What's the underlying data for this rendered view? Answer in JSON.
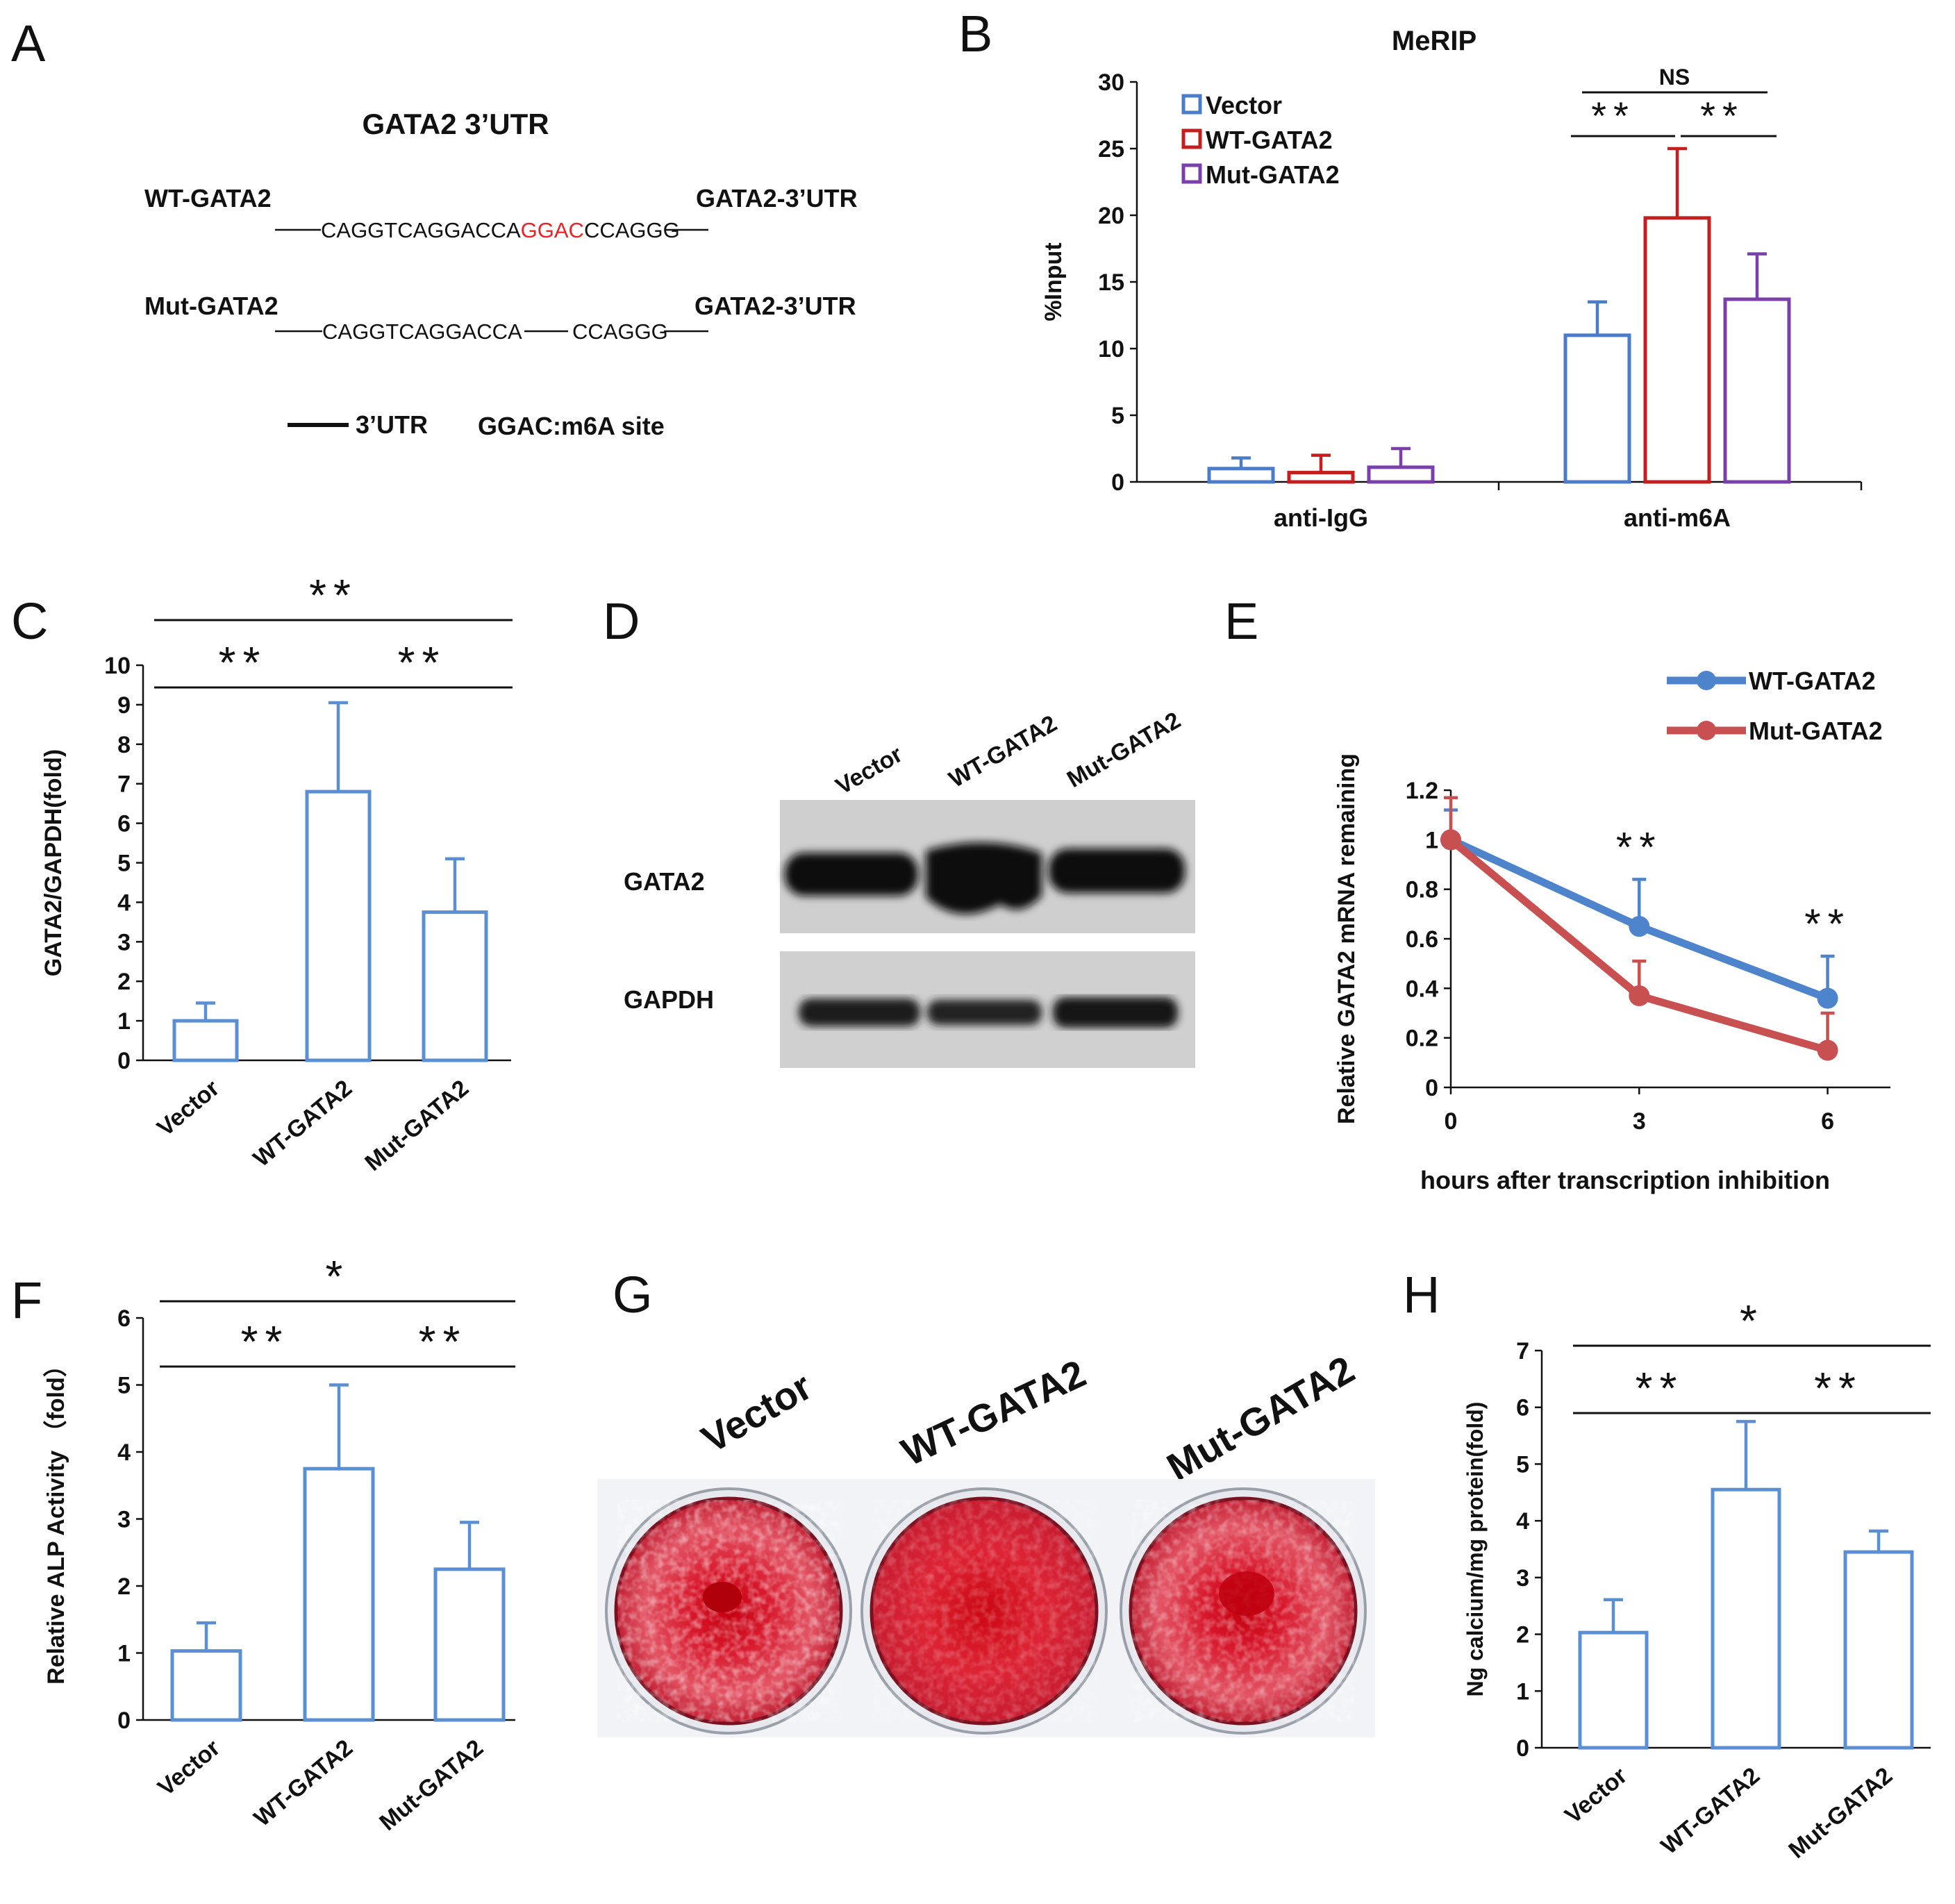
{
  "colors": {
    "vector": "#4a7cc9",
    "wt": "#c41e1e",
    "mut": "#7a3fa8",
    "line_wt": "#4e84cc",
    "line_mut": "#c95050",
    "bar_single": "#5b8fd3",
    "red_text": "#e8232a",
    "stain": "#d61a2c"
  },
  "panels": {
    "A": {
      "letter": "A",
      "title": "GATA2 3’UTR",
      "wt_label": "WT-GATA2",
      "wt_seq_left": "CAGGTCAGGACCA",
      "wt_seq_site": "GGAC",
      "wt_seq_right": "CCAGGG",
      "mut_label": "Mut-GATA2",
      "mut_seq_left": "CAGGTCAGGACCA",
      "mut_seq_right": "CCAGGG",
      "utr_label_1": "GATA2-3’UTR",
      "utr_label_2": "GATA2-3’UTR",
      "legend_line": "3’UTR",
      "legend_site": "GGAC:m6A site"
    },
    "B": {
      "letter": "B"
    },
    "C": {
      "letter": "C"
    },
    "D": {
      "letter": "D",
      "lanes": [
        "Vector",
        "WT-GATA2",
        "Mut-GATA2"
      ],
      "rows": [
        "GATA2",
        "GAPDH"
      ]
    },
    "E": {
      "letter": "E"
    },
    "F": {
      "letter": "F"
    },
    "G": {
      "letter": "G",
      "wells": [
        "Vector",
        "WT-GATA2",
        "Mut-GATA2"
      ]
    },
    "H": {
      "letter": "H"
    }
  },
  "chart_data": [
    {
      "panel": "B",
      "type": "bar",
      "title": "MeRIP",
      "ylabel": "%Input",
      "ylim": [
        0,
        30
      ],
      "yticks": [
        0,
        5,
        10,
        15,
        20,
        25,
        30
      ],
      "categories": [
        "anti-IgG",
        "anti-m6A"
      ],
      "series": [
        {
          "name": "Vector",
          "values": [
            1.0,
            11.0
          ],
          "errors": [
            0.8,
            2.5
          ]
        },
        {
          "name": "WT-GATA2",
          "values": [
            0.7,
            19.8
          ],
          "errors": [
            1.3,
            5.2
          ]
        },
        {
          "name": "Mut-GATA2",
          "values": [
            1.1,
            13.7
          ],
          "errors": [
            1.4,
            3.4
          ]
        }
      ],
      "legend": "top-left",
      "significance": [
        {
          "label": "NS",
          "from": "Vector",
          "to": "Mut-GATA2"
        },
        {
          "label": "**",
          "from": "Vector",
          "to": "WT-GATA2"
        },
        {
          "label": "**",
          "from": "WT-GATA2",
          "to": "Mut-GATA2"
        }
      ]
    },
    {
      "panel": "C",
      "type": "bar",
      "ylabel": "GATA2/GAPDH(fold)",
      "ylim": [
        0,
        10
      ],
      "yticks": [
        0,
        1,
        2,
        3,
        4,
        5,
        6,
        7,
        8,
        9,
        10
      ],
      "categories": [
        "Vector",
        "WT-GATA2",
        "Mut-GATA2"
      ],
      "values": [
        1.0,
        6.8,
        3.75
      ],
      "errors": [
        0.45,
        2.25,
        1.35
      ],
      "significance": [
        {
          "label": "**",
          "span": "all"
        },
        {
          "label": "**",
          "from": "Vector",
          "to": "WT-GATA2"
        },
        {
          "label": "**",
          "from": "WT-GATA2",
          "to": "Mut-GATA2"
        }
      ]
    },
    {
      "panel": "E",
      "type": "line",
      "ylabel": "Relative GATA2 mRNA remaining",
      "xlabel": "hours after  transcription inhibition",
      "ylim": [
        0,
        1.2
      ],
      "yticks": [
        0,
        0.2,
        0.4,
        0.6,
        0.8,
        1,
        1.2
      ],
      "x": [
        0,
        3,
        6
      ],
      "legend": "top-right",
      "series": [
        {
          "name": "WT-GATA2",
          "values": [
            1.0,
            0.65,
            0.36
          ],
          "errors": [
            0.12,
            0.19,
            0.17
          ]
        },
        {
          "name": "Mut-GATA2",
          "values": [
            1.0,
            0.37,
            0.15
          ],
          "errors": [
            0.17,
            0.14,
            0.15
          ]
        }
      ],
      "significance": [
        {
          "label": "**",
          "x": 3
        },
        {
          "label": "**",
          "x": 6
        }
      ]
    },
    {
      "panel": "F",
      "type": "bar",
      "ylabel": "Relative ALP Activity （fold）",
      "ylim": [
        0,
        6
      ],
      "yticks": [
        0,
        1,
        2,
        3,
        4,
        5,
        6
      ],
      "categories": [
        "Vector",
        "WT-GATA2",
        "Mut-GATA2"
      ],
      "values": [
        1.03,
        3.75,
        2.25
      ],
      "errors": [
        0.42,
        1.25,
        0.7
      ],
      "significance": [
        {
          "label": "*",
          "span": "all"
        },
        {
          "label": "**",
          "from": "Vector",
          "to": "WT-GATA2"
        },
        {
          "label": "**",
          "from": "WT-GATA2",
          "to": "Mut-GATA2"
        }
      ]
    },
    {
      "panel": "H",
      "type": "bar",
      "ylabel": "Ng calcium/mg protein(fold)",
      "ylim": [
        0,
        7
      ],
      "yticks": [
        0,
        1,
        2,
        3,
        4,
        5,
        6,
        7
      ],
      "categories": [
        "Vector",
        "WT-GATA2",
        "Mut-GATA2"
      ],
      "values": [
        2.03,
        4.55,
        3.45
      ],
      "errors": [
        0.58,
        1.2,
        0.37
      ],
      "significance": [
        {
          "label": "*",
          "span": "all"
        },
        {
          "label": "**",
          "from": "Vector",
          "to": "WT-GATA2"
        },
        {
          "label": "**",
          "from": "WT-GATA2",
          "to": "Mut-GATA2"
        }
      ]
    }
  ]
}
